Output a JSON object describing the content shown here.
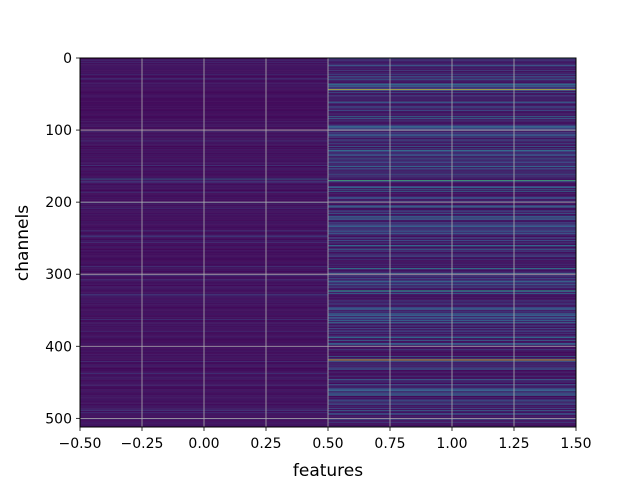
{
  "chart_data": {
    "type": "heatmap",
    "title": "",
    "xlabel": "features",
    "ylabel": "channels",
    "xlim": [
      -0.5,
      1.5
    ],
    "ylim": [
      512,
      0
    ],
    "grid": true,
    "colormap": "viridis",
    "columns": [
      0,
      1
    ],
    "rows": 512,
    "x_ticks": [
      "−0.50",
      "−0.25",
      "0.00",
      "0.25",
      "0.50",
      "0.75",
      "1.00",
      "1.25",
      "1.50"
    ],
    "y_ticks": [
      "0",
      "100",
      "200",
      "300",
      "400",
      "500"
    ],
    "highlights": [
      {
        "column": 0,
        "channel": 168,
        "level": 0.38
      },
      {
        "column": 1,
        "channel": 44,
        "level": 0.92
      },
      {
        "column": 1,
        "channel": 170,
        "level": 0.62
      },
      {
        "column": 1,
        "channel": 323,
        "level": 0.55
      },
      {
        "column": 1,
        "channel": 419,
        "level": 0.95
      },
      {
        "column": 1,
        "channel": 128,
        "level": 0.4
      },
      {
        "column": 1,
        "channel": 292,
        "level": 0.42
      }
    ]
  },
  "colors": {
    "background_low": "#440154",
    "mid": "#21918c",
    "high": "#fde725",
    "grid": "#b0b0b0"
  }
}
